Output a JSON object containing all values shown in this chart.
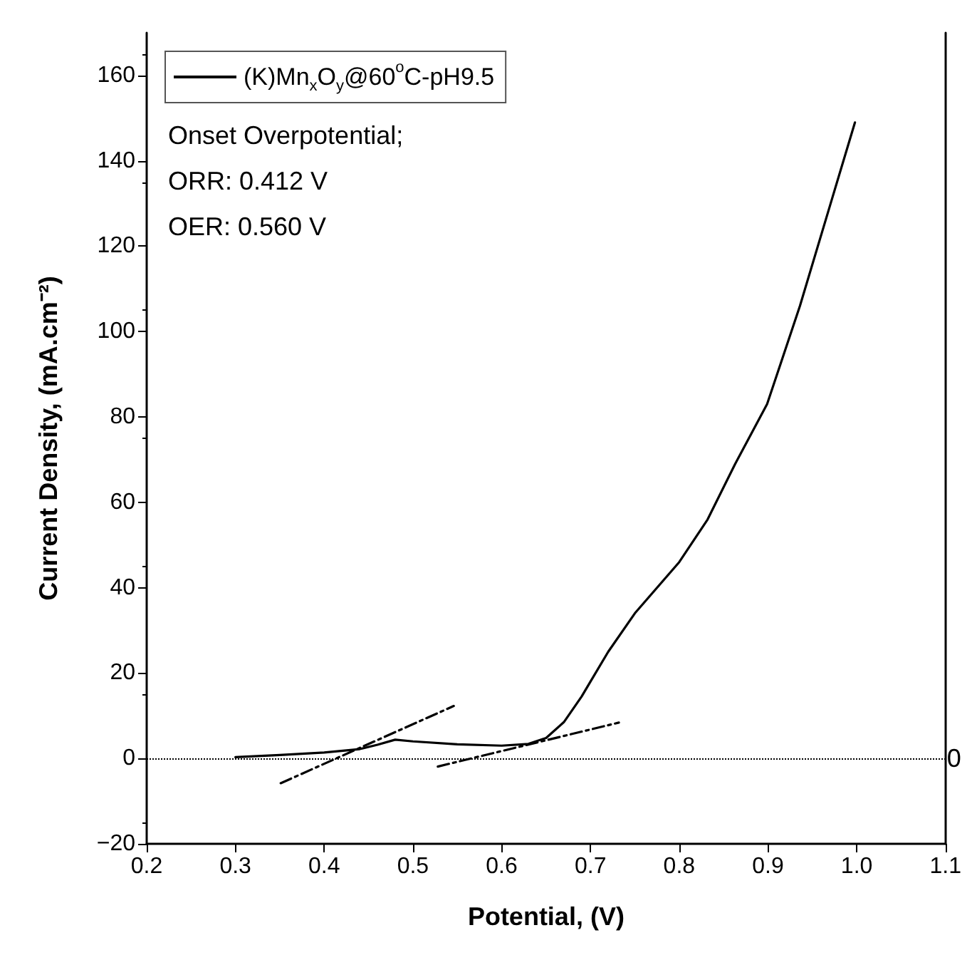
{
  "chart_data": {
    "type": "line",
    "xlabel": "Potential, (V)",
    "ylabel": "Current Density, (mA.cm⁻²)",
    "series": [
      {
        "name": "(K)Mn$_{x}$O$_{y}$@60$^{o}$C-pH9.5",
        "color": "#000000",
        "line_style": "solid",
        "x": [
          0.3,
          0.35,
          0.4,
          0.44,
          0.46,
          0.48,
          0.5,
          0.55,
          0.6,
          0.63,
          0.65,
          0.67,
          0.69,
          0.7,
          0.72,
          0.75,
          0.8,
          0.832,
          0.863,
          0.899,
          0.936,
          0.972,
          0.998
        ],
        "values": [
          0.3,
          0.8,
          1.4,
          2.2,
          3.2,
          4.4,
          4.0,
          3.3,
          3.0,
          3.4,
          4.8,
          8.5,
          14.5,
          18,
          25,
          34,
          46,
          56,
          69,
          83,
          106,
          131,
          149
        ]
      },
      {
        "color": "#000000",
        "line_style": "dashed",
        "x": [
          0.351,
          0.546
        ],
        "values": [
          -5.8,
          12.3
        ]
      },
      {
        "color": "#000000",
        "line_style": "dashed",
        "x": [
          0.528,
          0.732
        ],
        "values": [
          -1.9,
          8.4
        ]
      }
    ],
    "xlim": [
      0.2,
      1.1
    ],
    "xticks": [
      0.2,
      0.3,
      0.4,
      0.5,
      0.6,
      0.7,
      0.8,
      0.9,
      {
        "value": 1.0,
        "label": "1.0"
      },
      1.1
    ],
    "ylim": [
      -20,
      170
    ],
    "yticks": [
      {
        "value": -20,
        "label": "−20"
      },
      0,
      20,
      40,
      60,
      80,
      100,
      120,
      140,
      160
    ],
    "ref_lines": [
      {
        "axis": "y",
        "value": 0,
        "label": "0",
        "line_style": "dotted",
        "color": "#000000"
      }
    ],
    "annotations": [
      "Onset Overpotential;",
      "ORR: 0.412 V",
      "OER: 0.560 V"
    ],
    "legend": "top left",
    "grid": false,
    "marker": "none"
  }
}
